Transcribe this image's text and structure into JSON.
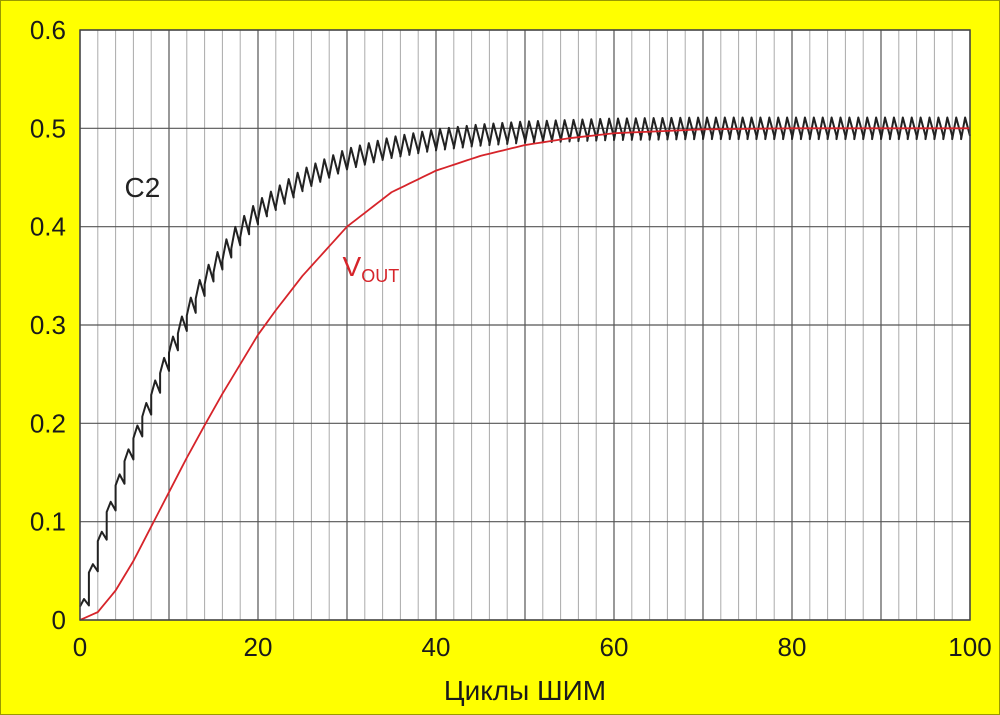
{
  "chart_data": {
    "type": "line",
    "title": "",
    "xlabel": "Циклы ШИМ",
    "ylabel": "",
    "xlim": [
      0,
      100
    ],
    "ylim": [
      0,
      0.6
    ],
    "x_ticks": [
      "0",
      "20",
      "40",
      "60",
      "80",
      "100"
    ],
    "y_ticks": [
      "0",
      "0.1",
      "0.2",
      "0.3",
      "0.4",
      "0.5",
      "0.6"
    ],
    "grid": true,
    "minor_grid_x_step": 2,
    "series": [
      {
        "name": "C2",
        "color": "#222222",
        "style": "sawtooth",
        "ripple": 0.022,
        "points": [
          [
            0,
            0
          ],
          [
            2,
            0.07
          ],
          [
            4,
            0.13
          ],
          [
            6,
            0.18
          ],
          [
            8,
            0.225
          ],
          [
            10,
            0.27
          ],
          [
            12,
            0.31
          ],
          [
            14,
            0.345
          ],
          [
            16,
            0.37
          ],
          [
            18,
            0.395
          ],
          [
            20,
            0.415
          ],
          [
            25,
            0.447
          ],
          [
            30,
            0.468
          ],
          [
            35,
            0.48
          ],
          [
            40,
            0.488
          ],
          [
            45,
            0.493
          ],
          [
            50,
            0.496
          ],
          [
            60,
            0.499
          ],
          [
            70,
            0.5
          ],
          [
            80,
            0.5
          ],
          [
            90,
            0.5
          ],
          [
            100,
            0.5
          ]
        ]
      },
      {
        "name": "VOUT",
        "color": "#d6242a",
        "style": "smooth",
        "points": [
          [
            0,
            0
          ],
          [
            2,
            0.008
          ],
          [
            4,
            0.03
          ],
          [
            6,
            0.06
          ],
          [
            8,
            0.095
          ],
          [
            10,
            0.13
          ],
          [
            12,
            0.165
          ],
          [
            14,
            0.198
          ],
          [
            16,
            0.23
          ],
          [
            18,
            0.26
          ],
          [
            20,
            0.29
          ],
          [
            22,
            0.315
          ],
          [
            25,
            0.35
          ],
          [
            30,
            0.4
          ],
          [
            35,
            0.435
          ],
          [
            40,
            0.457
          ],
          [
            45,
            0.472
          ],
          [
            50,
            0.483
          ],
          [
            55,
            0.49
          ],
          [
            60,
            0.495
          ],
          [
            65,
            0.497
          ],
          [
            70,
            0.499
          ],
          [
            80,
            0.5
          ],
          [
            100,
            0.5
          ]
        ]
      }
    ],
    "annotations": [
      {
        "text": "C2",
        "color": "#222222",
        "x": 5,
        "y": 0.43
      },
      {
        "text": "V",
        "sub": "OUT",
        "color": "#d6242a",
        "x": 29.5,
        "y": 0.35
      }
    ],
    "colors": {
      "background": "#ffff00",
      "plot_bg": "#ffffff",
      "grid_major": "#555555",
      "grid_minor": "#aaaaaa"
    }
  }
}
